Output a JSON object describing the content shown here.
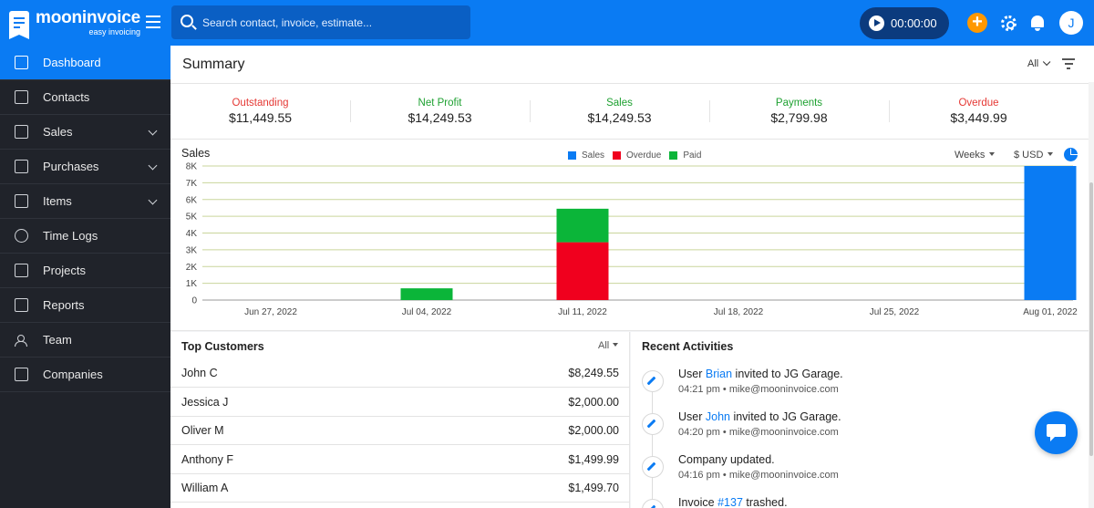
{
  "brand": {
    "name": "mooninvoice",
    "tagline": "easy invoicing"
  },
  "topbar": {
    "search_placeholder": "Search contact, invoice, estimate...",
    "timer": "00:00:00",
    "avatar_initial": "J",
    "accent": "#0a7bf3",
    "add_color": "#ff9800"
  },
  "sidebar": {
    "items": [
      {
        "label": "Dashboard",
        "icon": "home-icon",
        "active": true
      },
      {
        "label": "Contacts",
        "icon": "contacts-book-icon"
      },
      {
        "label": "Sales",
        "icon": "dollar-doc-icon",
        "expandable": true
      },
      {
        "label": "Purchases",
        "icon": "shopping-bag-icon",
        "expandable": true
      },
      {
        "label": "Items",
        "icon": "list-icon",
        "expandable": true
      },
      {
        "label": "Time Logs",
        "icon": "clock-icon"
      },
      {
        "label": "Projects",
        "icon": "folder-icon"
      },
      {
        "label": "Reports",
        "icon": "report-chart-icon"
      },
      {
        "label": "Team",
        "icon": "team-icon"
      },
      {
        "label": "Companies",
        "icon": "building-icon"
      }
    ]
  },
  "summary": {
    "title": "Summary",
    "filter": "All",
    "stats": [
      {
        "label": "Outstanding",
        "value": "$11,449.55",
        "color": "#e53935"
      },
      {
        "label": "Net Profit",
        "value": "$14,249.53",
        "color": "#1ea131"
      },
      {
        "label": "Sales",
        "value": "$14,249.53",
        "color": "#1ea131"
      },
      {
        "label": "Payments",
        "value": "$2,799.98",
        "color": "#1ea131"
      },
      {
        "label": "Overdue",
        "value": "$3,449.99",
        "color": "#e53935"
      }
    ]
  },
  "chart_controls": {
    "period": "Weeks",
    "currency": "$ USD"
  },
  "chart_data": {
    "type": "bar",
    "title": "Sales",
    "stacked": true,
    "categories": [
      "Jun 27, 2022",
      "Jul 04, 2022",
      "Jul 11, 2022",
      "Jul 18, 2022",
      "Jul 25, 2022",
      "Aug 01, 2022"
    ],
    "series": [
      {
        "name": "Sales",
        "color": "#0a7bf3",
        "values": [
          0,
          0,
          0,
          0,
          0,
          8000
        ]
      },
      {
        "name": "Overdue",
        "color": "#f0001e",
        "values": [
          0,
          0,
          3450,
          0,
          0,
          0
        ]
      },
      {
        "name": "Paid",
        "color": "#0bb539",
        "values": [
          0,
          700,
          2000,
          0,
          0,
          0
        ]
      }
    ],
    "ylim": [
      0,
      8000
    ],
    "yticks": [
      "0",
      "1K",
      "2K",
      "3K",
      "4K",
      "5K",
      "6K",
      "7K",
      "8K"
    ],
    "grid": true,
    "legend": "top-center"
  },
  "top_customers": {
    "title": "Top Customers",
    "filter": "All",
    "rows": [
      {
        "name": "John C",
        "amount": "$8,249.55"
      },
      {
        "name": "Jessica J",
        "amount": "$2,000.00"
      },
      {
        "name": "Oliver M",
        "amount": "$2,000.00"
      },
      {
        "name": "Anthony F",
        "amount": "$1,499.99"
      },
      {
        "name": "William A",
        "amount": "$1,499.70"
      }
    ]
  },
  "recent_activities": {
    "title": "Recent Activities",
    "items": [
      {
        "pre": "User ",
        "link": "Brian",
        "post": " invited to JG Garage.",
        "time": "04:21 pm",
        "email": "mike@mooninvoice.com"
      },
      {
        "pre": "User ",
        "link": "John",
        "post": " invited to JG Garage.",
        "time": "04:20 pm",
        "email": "mike@mooninvoice.com"
      },
      {
        "pre": "Company updated.",
        "link": "",
        "post": "",
        "time": "04:16 pm",
        "email": "mike@mooninvoice.com"
      },
      {
        "pre": "Invoice ",
        "link": "#137",
        "post": " trashed.",
        "time": "",
        "email": ""
      }
    ]
  }
}
